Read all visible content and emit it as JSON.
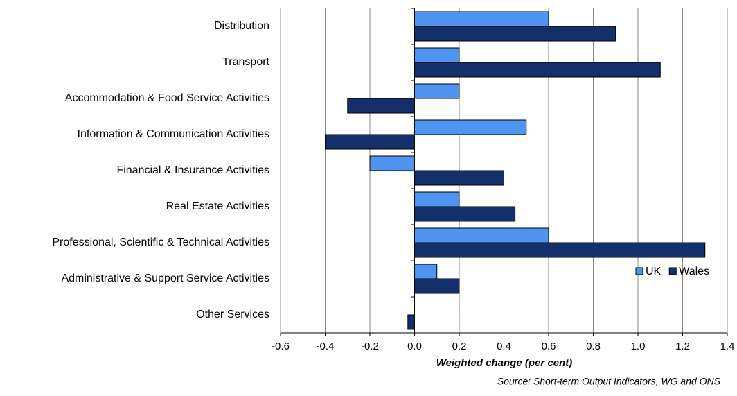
{
  "chart_data": {
    "type": "bar",
    "orientation": "horizontal",
    "categories": [
      "Distribution",
      "Transport",
      "Accommodation & Food Service Activities",
      "Information & Communication Activities",
      "Financial & Insurance Activities",
      "Real Estate Activities",
      "Professional, Scientific & Technical Activities",
      "Administrative & Support Service Activities",
      "Other Services"
    ],
    "series": [
      {
        "name": "UK",
        "color": "#4f94f0",
        "values": [
          0.6,
          0.2,
          0.2,
          0.5,
          -0.2,
          0.2,
          0.6,
          0.1,
          0
        ]
      },
      {
        "name": "Wales",
        "color": "#13306b",
        "values": [
          0.9,
          1.1,
          -0.3,
          -0.4,
          0.4,
          0.45,
          1.3,
          0.2,
          -0.03
        ]
      }
    ],
    "xlabel": "Weighted change (per cent)",
    "source": "Source: Short-term Output Indicators, WG and ONS",
    "xlim": [
      -0.6,
      1.4
    ],
    "xticks": [
      -0.6,
      -0.4,
      -0.2,
      {
        "value": 0,
        "label": "0.0"
      },
      0.2,
      0.4,
      0.6,
      0.8,
      {
        "value": 1,
        "label": "1.0"
      },
      1.2,
      1.4
    ],
    "grid": true,
    "legend": "right"
  }
}
